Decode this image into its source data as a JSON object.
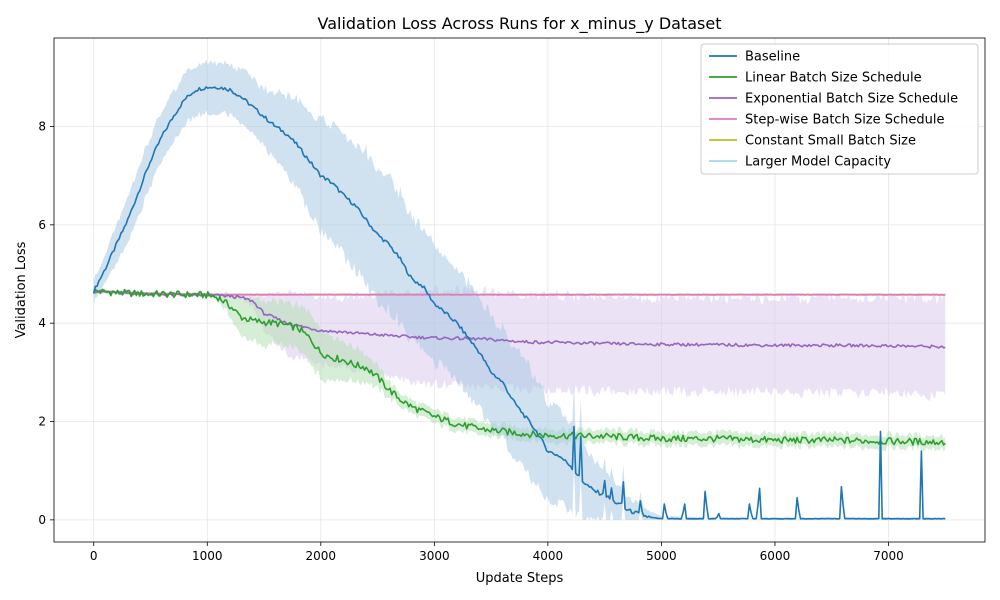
{
  "chart_data": {
    "type": "line",
    "title": "Validation Loss Across Runs for x_minus_y Dataset",
    "xlabel": "Update Steps",
    "ylabel": "Validation Loss",
    "xlim": [
      -350,
      7850
    ],
    "ylim": [
      -0.45,
      9.8
    ],
    "xticks": [
      0,
      1000,
      2000,
      3000,
      4000,
      5000,
      6000,
      7000
    ],
    "yticks": [
      0,
      2,
      4,
      6,
      8
    ],
    "grid": true,
    "legend_position": "top-right",
    "series": [
      {
        "name": "Baseline",
        "color": "#1f77b4",
        "band_color": "#a9c8e4",
        "x": [
          0,
          100,
          200,
          300,
          400,
          500,
          600,
          700,
          800,
          900,
          1000,
          1100,
          1200,
          1300,
          1400,
          1500,
          1600,
          1700,
          1800,
          1900,
          2000,
          2100,
          2200,
          2300,
          2400,
          2500,
          2600,
          2700,
          2800,
          2900,
          3000,
          3100,
          3200,
          3300,
          3400,
          3500,
          3600,
          3700,
          3800,
          3900,
          4000,
          4100,
          4200,
          4300,
          4400,
          4500,
          4600,
          4700,
          4800,
          4900,
          5000,
          5500,
          6000,
          6500,
          7000,
          7500
        ],
        "values": [
          4.65,
          5.1,
          5.6,
          6.1,
          6.7,
          7.3,
          7.8,
          8.2,
          8.55,
          8.75,
          8.8,
          8.8,
          8.75,
          8.6,
          8.4,
          8.2,
          8.0,
          7.85,
          7.6,
          7.3,
          7.0,
          6.85,
          6.6,
          6.4,
          6.1,
          5.8,
          5.6,
          5.3,
          4.9,
          4.75,
          4.4,
          4.2,
          4.0,
          3.7,
          3.4,
          3.0,
          2.8,
          2.4,
          2.1,
          1.8,
          1.4,
          1.3,
          1.1,
          0.8,
          0.6,
          0.5,
          0.35,
          0.2,
          0.12,
          0.05,
          0.02,
          0.02,
          0.02,
          0.02,
          0.02,
          0.02
        ],
        "band": [
          0.2,
          0.25,
          0.35,
          0.4,
          0.45,
          0.45,
          0.45,
          0.45,
          0.45,
          0.45,
          0.45,
          0.45,
          0.45,
          0.5,
          0.5,
          0.5,
          0.6,
          0.7,
          0.8,
          0.9,
          1.0,
          1.05,
          1.1,
          1.15,
          1.2,
          1.2,
          1.2,
          1.2,
          1.1,
          1.1,
          1.05,
          1.0,
          1.0,
          1.0,
          1.0,
          1.0,
          1.0,
          1.0,
          1.0,
          0.95,
          0.9,
          0.85,
          0.8,
          0.7,
          0.55,
          0.45,
          0.35,
          0.25,
          0.18,
          0.1,
          0.05,
          0.02,
          0.02,
          0.02,
          0.02,
          0.02
        ],
        "spikes": [
          [
            4230,
            1.9
          ],
          [
            4290,
            1.7
          ],
          [
            4500,
            0.8
          ],
          [
            4560,
            0.65
          ],
          [
            4660,
            1.2
          ],
          [
            4820,
            0.6
          ],
          [
            5030,
            0.5
          ],
          [
            5200,
            0.5
          ],
          [
            5390,
            0.9
          ],
          [
            5500,
            0.2
          ],
          [
            5780,
            0.5
          ],
          [
            5860,
            1.0
          ],
          [
            6200,
            0.7
          ],
          [
            6590,
            1.05
          ],
          [
            6930,
            1.8
          ],
          [
            7290,
            1.4
          ]
        ]
      },
      {
        "name": "Linear Batch Size Schedule",
        "color": "#2ca02c",
        "band_color": "#b5dfb5",
        "x": [
          0,
          200,
          400,
          600,
          800,
          1000,
          1100,
          1200,
          1300,
          1400,
          1500,
          1600,
          1700,
          1800,
          1900,
          2000,
          2100,
          2200,
          2300,
          2400,
          2500,
          2600,
          2700,
          2800,
          2900,
          3000,
          3200,
          3400,
          3600,
          3800,
          4000,
          4500,
          5000,
          5500,
          6000,
          6500,
          7000,
          7500
        ],
        "values": [
          4.65,
          4.62,
          4.6,
          4.59,
          4.58,
          4.57,
          4.52,
          4.35,
          4.12,
          4.05,
          4.02,
          4.0,
          3.96,
          3.9,
          3.7,
          3.4,
          3.3,
          3.25,
          3.15,
          3.1,
          2.9,
          2.65,
          2.45,
          2.3,
          2.2,
          2.1,
          1.95,
          1.85,
          1.8,
          1.75,
          1.72,
          1.7,
          1.65,
          1.65,
          1.62,
          1.62,
          1.6,
          1.58
        ],
        "band": [
          0.03,
          0.03,
          0.03,
          0.03,
          0.03,
          0.03,
          0.05,
          0.2,
          0.35,
          0.4,
          0.4,
          0.4,
          0.4,
          0.4,
          0.45,
          0.45,
          0.4,
          0.35,
          0.3,
          0.25,
          0.2,
          0.15,
          0.12,
          0.12,
          0.12,
          0.12,
          0.12,
          0.12,
          0.12,
          0.12,
          0.12,
          0.12,
          0.12,
          0.12,
          0.12,
          0.12,
          0.12,
          0.12
        ]
      },
      {
        "name": "Exponential Batch Size Schedule",
        "color": "#9467bd",
        "band_color": "#dccbec",
        "x": [
          0,
          200,
          400,
          600,
          800,
          1000,
          1100,
          1200,
          1300,
          1400,
          1500,
          1600,
          1700,
          1800,
          1900,
          2000,
          2200,
          2400,
          2600,
          2800,
          3000,
          3400,
          3800,
          4200,
          4600,
          5000,
          5500,
          6000,
          6500,
          7000,
          7500
        ],
        "values": [
          4.65,
          4.62,
          4.6,
          4.59,
          4.58,
          4.57,
          4.56,
          4.55,
          4.52,
          4.45,
          4.2,
          4.1,
          4.0,
          3.95,
          3.9,
          3.85,
          3.82,
          3.78,
          3.75,
          3.72,
          3.7,
          3.68,
          3.62,
          3.6,
          3.58,
          3.57,
          3.56,
          3.55,
          3.55,
          3.54,
          3.52
        ],
        "band": [
          0.03,
          0.03,
          0.03,
          0.03,
          0.03,
          0.03,
          0.03,
          0.03,
          0.05,
          0.1,
          0.3,
          0.45,
          0.55,
          0.6,
          0.6,
          0.6,
          0.62,
          0.7,
          0.75,
          0.8,
          0.85,
          0.85,
          0.85,
          0.85,
          0.85,
          0.85,
          0.85,
          0.85,
          0.85,
          0.87,
          0.87
        ]
      },
      {
        "name": "Step-wise Batch Size Schedule",
        "color": "#e377c2",
        "band_color": "#f4c8e6",
        "x": [
          0,
          300,
          600,
          1000,
          7500
        ],
        "values": [
          4.66,
          4.62,
          4.6,
          4.58,
          4.58
        ],
        "band": [
          0.02,
          0.02,
          0.02,
          0.02,
          0.02
        ]
      },
      {
        "name": "Constant Small Batch Size",
        "color": "#bcbd22",
        "band_color": "#e5e5a6",
        "x": [
          0,
          300,
          600,
          1000,
          7500
        ],
        "values": [
          4.67,
          4.62,
          4.6,
          4.58,
          4.58
        ],
        "band": [
          0.02,
          0.02,
          0.02,
          0.02,
          0.02
        ]
      },
      {
        "name": "Larger Model Capacity",
        "color": "#9edae5",
        "band_color": "#d6eff3",
        "x": [
          0,
          300,
          600,
          1000,
          7500
        ],
        "values": [
          4.68,
          4.6,
          4.59,
          4.58,
          4.58
        ],
        "band": [
          0.02,
          0.02,
          0.02,
          0.02,
          0.02
        ]
      }
    ]
  }
}
